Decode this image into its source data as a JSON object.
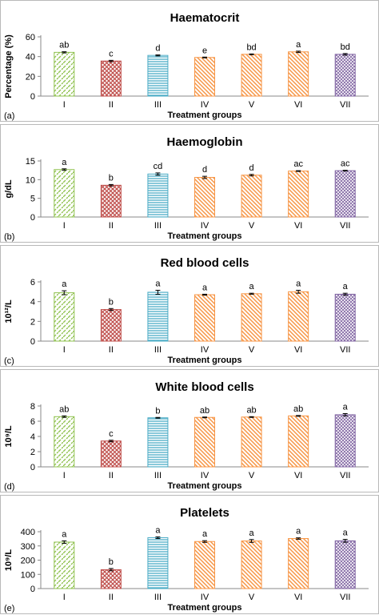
{
  "chart_data": [
    {
      "type": "bar",
      "panel_label": "(a)",
      "title": "Haematocrit",
      "xlabel": "Treatment groups",
      "ylabel": "Percentage (%)",
      "categories": [
        "I",
        "II",
        "III",
        "IV",
        "V",
        "VI",
        "VII"
      ],
      "values": [
        44.3,
        35.5,
        41.2,
        39.1,
        42.3,
        44.8,
        42.3
      ],
      "errors": [
        0.6,
        0.7,
        0.5,
        0.4,
        0.4,
        0.7,
        0.8
      ],
      "letters": [
        "ab",
        "c",
        "d",
        "e",
        "bd",
        "a",
        "bd"
      ],
      "ylim": [
        0,
        60
      ],
      "yticks": [
        "0",
        "20",
        "40",
        "60"
      ]
    },
    {
      "type": "bar",
      "panel_label": "(b)",
      "title": "Haemoglobin",
      "xlabel": "Treatment groups",
      "ylabel": "g/dL",
      "categories": [
        "I",
        "II",
        "III",
        "IV",
        "V",
        "VI",
        "VII"
      ],
      "values": [
        12.7,
        8.5,
        11.5,
        10.6,
        11.2,
        12.3,
        12.4
      ],
      "errors": [
        0.2,
        0.2,
        0.3,
        0.3,
        0.2,
        0.1,
        0.1
      ],
      "letters": [
        "a",
        "b",
        "cd",
        "d",
        "d",
        "ac",
        "ac"
      ],
      "ylim": [
        0,
        15
      ],
      "yticks": [
        "0",
        "5",
        "10",
        "15"
      ]
    },
    {
      "type": "bar",
      "panel_label": "(c)",
      "title": "Red blood cells",
      "xlabel": "Treatment groups",
      "ylabel": "10¹²/L",
      "categories": [
        "I",
        "II",
        "III",
        "IV",
        "V",
        "VI",
        "VII"
      ],
      "values": [
        4.9,
        3.2,
        4.95,
        4.7,
        4.8,
        5.0,
        4.75
      ],
      "errors": [
        0.2,
        0.1,
        0.2,
        0.05,
        0.05,
        0.15,
        0.1
      ],
      "letters": [
        "a",
        "b",
        "a",
        "a",
        "a",
        "a",
        "a"
      ],
      "ylim": [
        0,
        6
      ],
      "yticks": [
        "0",
        "2",
        "4",
        "6"
      ]
    },
    {
      "type": "bar",
      "panel_label": "(d)",
      "title": "White blood cells",
      "xlabel": "Treatment groups",
      "ylabel": "10⁹/L",
      "categories": [
        "I",
        "II",
        "III",
        "IV",
        "V",
        "VI",
        "VII"
      ],
      "values": [
        6.6,
        3.4,
        6.45,
        6.5,
        6.55,
        6.7,
        6.85
      ],
      "errors": [
        0.1,
        0.1,
        0.05,
        0.05,
        0.05,
        0.05,
        0.15
      ],
      "letters": [
        "ab",
        "c",
        "b",
        "ab",
        "ab",
        "ab",
        "a"
      ],
      "ylim": [
        0,
        8
      ],
      "yticks": [
        "0",
        "2",
        "4",
        "6",
        "8"
      ]
    },
    {
      "type": "bar",
      "panel_label": "(e)",
      "title": "Platelets",
      "xlabel": "Treatment groups",
      "ylabel": "10⁹/L",
      "categories": [
        "I",
        "II",
        "III",
        "IV",
        "V",
        "VI",
        "VII"
      ],
      "values": [
        327,
        133,
        358,
        331,
        335,
        352,
        336
      ],
      "errors": [
        9,
        8,
        6,
        6,
        10,
        5,
        10
      ],
      "letters": [
        "a",
        "b",
        "a",
        "a",
        "a",
        "a",
        "a"
      ],
      "ylim": [
        0,
        400
      ],
      "yticks": [
        "0",
        "100",
        "200",
        "300",
        "400"
      ]
    }
  ],
  "bar_styles": [
    {
      "group": "I",
      "pattern": "diagonal-dash",
      "color": "#92c353"
    },
    {
      "group": "II",
      "pattern": "crosshatch",
      "color": "#c0504d"
    },
    {
      "group": "III",
      "pattern": "horizontal-lines",
      "color": "#4bacc6"
    },
    {
      "group": "IV",
      "pattern": "diagonal-lines",
      "color": "#f79646"
    },
    {
      "group": "V",
      "pattern": "diagonal-lines",
      "color": "#f79646"
    },
    {
      "group": "VI",
      "pattern": "diagonal-lines",
      "color": "#f79646"
    },
    {
      "group": "VII",
      "pattern": "diagonal-crosshatch",
      "color": "#8064a2"
    }
  ]
}
